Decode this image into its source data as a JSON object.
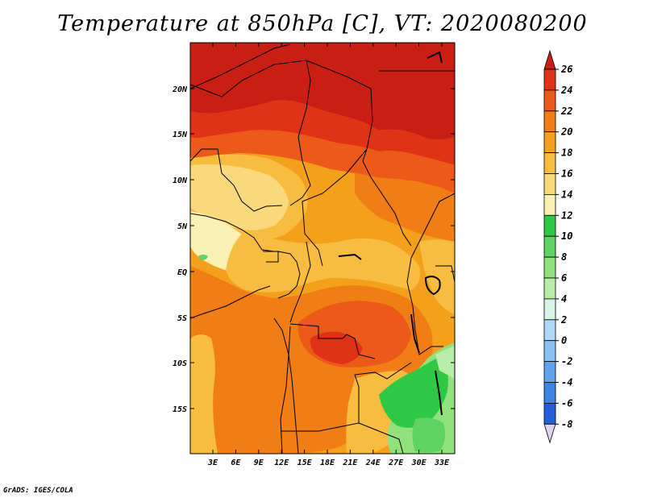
{
  "title": "Temperature at 850hPa [C], VT: 2020080200",
  "credit": "GrADS: IGES/COLA",
  "map": {
    "region": "Central Africa",
    "lat_labels": [
      "20N",
      "15N",
      "10N",
      "5N",
      "EQ",
      "5S",
      "10S",
      "15S"
    ],
    "lon_labels": [
      "3E",
      "6E",
      "9E",
      "12E",
      "15E",
      "18E",
      "21E",
      "24E",
      "27E",
      "30E",
      "33E"
    ]
  },
  "colorbar": {
    "labels": [
      "26",
      "24",
      "22",
      "20",
      "18",
      "16",
      "14",
      "12",
      "10",
      "8",
      "6",
      "4",
      "2",
      "0",
      "-2",
      "-4",
      "-6",
      "-8"
    ],
    "colors": [
      "#c81e14",
      "#e03216",
      "#ec5a1a",
      "#f07e14",
      "#f3a11c",
      "#f8bd40",
      "#fad87c",
      "#fbf0b4",
      "#2ec844",
      "#5ed262",
      "#92e07e",
      "#b8eca8",
      "#d8f4e8",
      "#aed8f8",
      "#8ac0f2",
      "#5ea4ec",
      "#3c84e4",
      "#2060d8",
      "#1844b4",
      "#122e94",
      "#0e1c78"
    ],
    "bottom_tip_color": "#ddd4f0"
  }
}
